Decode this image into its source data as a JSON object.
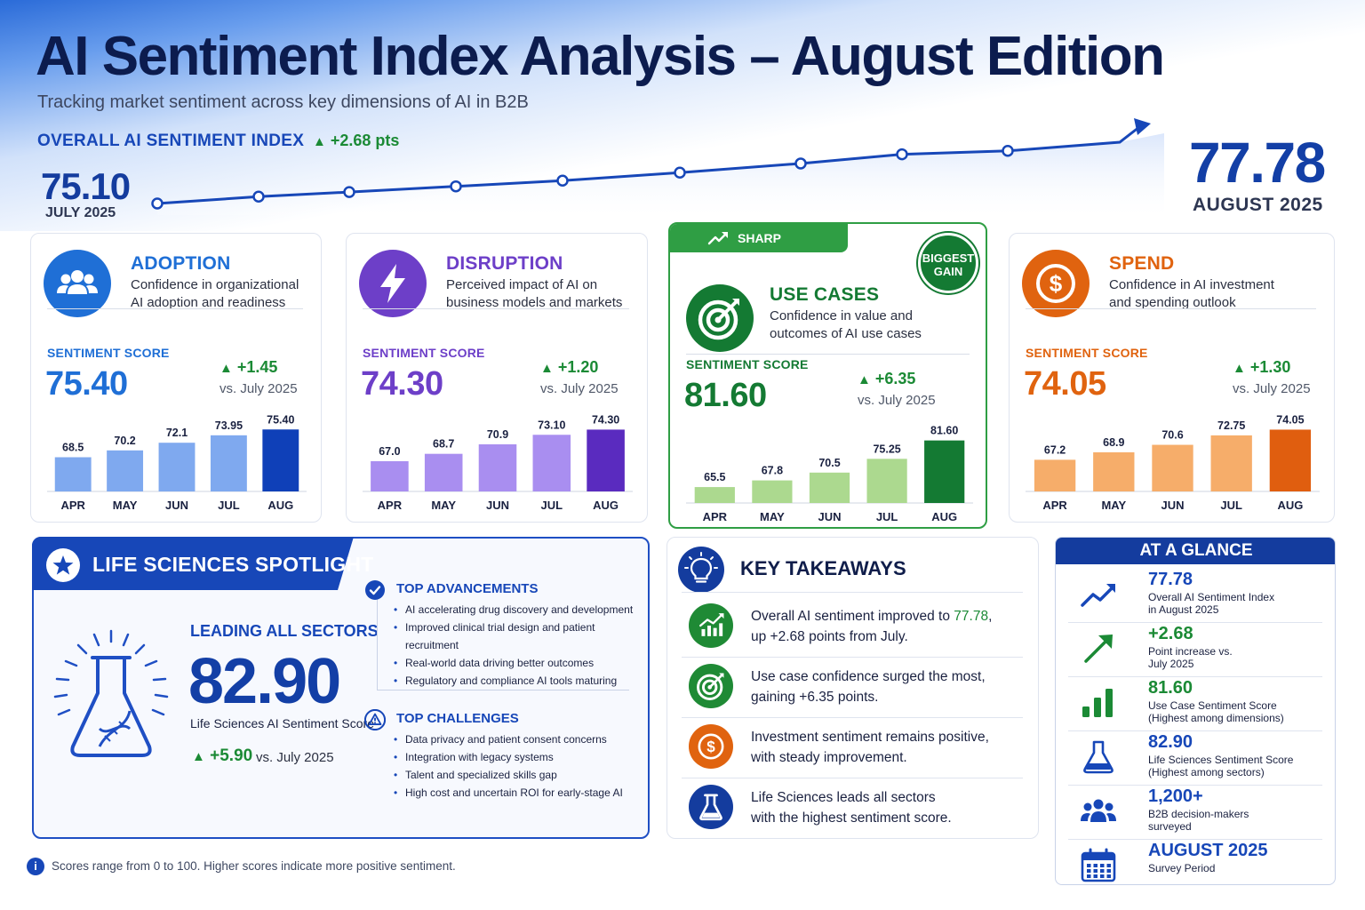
{
  "header": {
    "title": "AI Sentiment Index Analysis – August Edition",
    "subtitle": "Tracking market sentiment across key dimensions of AI in B2B"
  },
  "overall": {
    "label": "OVERALL AI SENTIMENT INDEX",
    "change": "+2.68 pts",
    "start_value": "75.10",
    "start_label": "JULY 2025",
    "end_value": "77.78",
    "end_label": "AUGUST 2025"
  },
  "chart_data": [
    {
      "type": "line",
      "title": "OVERALL AI SENTIMENT INDEX",
      "x": [
        1,
        2,
        3,
        4,
        5,
        6,
        7,
        8,
        9,
        10
      ],
      "y": [
        75.1,
        75.4,
        75.6,
        75.85,
        76.1,
        76.45,
        76.85,
        77.25,
        77.4,
        77.78
      ],
      "ylim": [
        74.8,
        78.0
      ]
    },
    {
      "type": "bar",
      "title": "ADOPTION",
      "categories": [
        "APR",
        "MAY",
        "JUN",
        "JUL",
        "AUG"
      ],
      "values": [
        68.5,
        70.2,
        72.1,
        73.95,
        75.4
      ],
      "value_labels": [
        "68.5",
        "70.2",
        "72.1",
        "73.95",
        "75.40"
      ]
    },
    {
      "type": "bar",
      "title": "DISRUPTION",
      "categories": [
        "APR",
        "MAY",
        "JUN",
        "JUL",
        "AUG"
      ],
      "values": [
        67.0,
        68.7,
        70.9,
        73.1,
        74.3
      ],
      "value_labels": [
        "67.0",
        "68.7",
        "70.9",
        "73.10",
        "74.30"
      ]
    },
    {
      "type": "bar",
      "title": "USE CASES",
      "categories": [
        "APR",
        "MAY",
        "JUN",
        "JUL",
        "AUG"
      ],
      "values": [
        65.5,
        67.8,
        70.5,
        75.25,
        81.6
      ],
      "value_labels": [
        "65.5",
        "67.8",
        "70.5",
        "75.25",
        "81.60"
      ]
    },
    {
      "type": "bar",
      "title": "SPEND",
      "categories": [
        "APR",
        "MAY",
        "JUN",
        "JUL",
        "AUG"
      ],
      "values": [
        67.2,
        68.9,
        70.6,
        72.75,
        74.05
      ],
      "value_labels": [
        "67.2",
        "68.9",
        "70.6",
        "72.75",
        "74.05"
      ]
    }
  ],
  "cards": [
    {
      "name": "ADOPTION",
      "desc_line1": "Confidence in organizational",
      "desc_line2": "AI adoption and readiness",
      "score_label": "SENTIMENT SCORE",
      "score": "75.40",
      "change": "+1.45",
      "vs": "vs. July 2025",
      "icon": "users-icon",
      "accent": "#1f6fd6",
      "bar_light": "#7fa9ef",
      "bar_dark": "#0f40b8"
    },
    {
      "name": "DISRUPTION",
      "desc_line1": "Perceived impact of AI on",
      "desc_line2": "business models and markets",
      "score_label": "SENTIMENT SCORE",
      "score": "74.30",
      "change": "+1.20",
      "vs": "vs. July 2025",
      "icon": "lightning-icon",
      "accent": "#6d3fc8",
      "bar_light": "#a98ef0",
      "bar_dark": "#5a2bbf"
    },
    {
      "name": "USE CASES",
      "desc_line1": "Confidence in value and",
      "desc_line2": "outcomes of AI use cases",
      "score_label": "SENTIMENT SCORE",
      "score": "81.60",
      "change": "+6.35",
      "vs": "vs. July 2025",
      "icon": "target-icon",
      "accent": "#147a33",
      "bar_light": "#acd98f",
      "bar_dark": "#147a33",
      "badge": "SHARP INCREASE",
      "badge_gain_line1": "BIGGEST",
      "badge_gain_line2": "GAIN"
    },
    {
      "name": "SPEND",
      "desc_line1": "Confidence in AI investment",
      "desc_line2": "and spending outlook",
      "score_label": "SENTIMENT SCORE",
      "score": "74.05",
      "change": "+1.30",
      "vs": "vs. July 2025",
      "icon": "dollar-icon",
      "accent": "#e0630f",
      "bar_light": "#f6ad6a",
      "bar_dark": "#e05e0f"
    }
  ],
  "life_sciences": {
    "title": "LIFE SCIENCES SPOTLIGHT",
    "leading": "LEADING ALL SECTORS",
    "score": "82.90",
    "score_label": "Life Sciences AI Sentiment Score",
    "change": "+5.90",
    "vs": "vs. July 2025",
    "advancements_title": "TOP ADVANCEMENTS",
    "advancements": [
      "AI accelerating drug discovery and development",
      "Improved clinical trial design and patient recruitment",
      "Real-world data driving better outcomes",
      "Regulatory and compliance AI tools maturing"
    ],
    "challenges_title": "TOP CHALLENGES",
    "challenges": [
      "Data privacy and patient consent concerns",
      "Integration with legacy systems",
      "Talent and specialized skills gap",
      "High cost and uncertain ROI for early-stage AI"
    ]
  },
  "takeaways": {
    "title": "KEY TAKEAWAYS",
    "items": [
      {
        "pre": "Overall AI sentiment improved to ",
        "hl": "77.78",
        "post": ",",
        "line2": "up +2.68 points from July.",
        "icon": "chart-up-icon",
        "color": "#1f8a35"
      },
      {
        "pre": "Use case confidence surged the most,",
        "hl": "",
        "post": "",
        "line2": "gaining +6.35 points.",
        "icon": "target-icon",
        "color": "#1f8a35"
      },
      {
        "pre": "Investment sentiment remains positive,",
        "hl": "",
        "post": "",
        "line2": "with steady improvement.",
        "icon": "dollar-icon",
        "color": "#e0630f"
      },
      {
        "pre": "Life Sciences leads all sectors",
        "hl": "",
        "post": "",
        "line2": "with the highest sentiment score.",
        "icon": "flask-icon",
        "color": "#143c9e"
      }
    ]
  },
  "glance": {
    "title": "AT A GLANCE",
    "items": [
      {
        "value": "77.78",
        "line1": "Overall AI Sentiment Index",
        "line2": "in August 2025",
        "icon": "trend-up-icon",
        "green": false
      },
      {
        "value": "+2.68",
        "line1": "Point increase vs.",
        "line2": "July 2025",
        "icon": "arrow-up-right-icon",
        "green": true
      },
      {
        "value": "81.60",
        "line1": "Use Case Sentiment Score",
        "line2": "(Highest among dimensions)",
        "icon": "bar-chart-icon",
        "green": true
      },
      {
        "value": "82.90",
        "line1": "Life Sciences Sentiment Score",
        "line2": "(Highest among sectors)",
        "icon": "flask-icon",
        "green": false
      },
      {
        "value": "1,200+",
        "line1": "B2B decision-makers",
        "line2": "surveyed",
        "icon": "users-icon",
        "green": false
      },
      {
        "value": "AUGUST 2025",
        "line1": "Survey Period",
        "line2": "",
        "icon": "calendar-icon",
        "green": false
      }
    ]
  },
  "footnote": "Scores range from 0 to 100. Higher scores indicate more positive sentiment.",
  "colors": {
    "navy": "#0c1c4e",
    "blue": "#1747b8",
    "green": "#1b8a35"
  }
}
